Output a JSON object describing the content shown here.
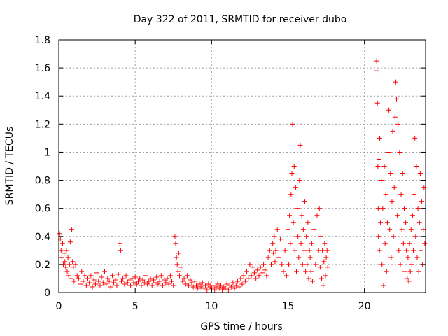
{
  "chart_data": {
    "type": "scatter",
    "title": "Day 322 of 2011, SRMTID for receiver dubo",
    "xlabel": "GPS time / hours",
    "ylabel": "SRMTID / TECUs",
    "xlim": [
      0,
      24
    ],
    "ylim": [
      0,
      1.8
    ],
    "xticks": [
      0,
      5,
      10,
      15,
      20
    ],
    "yticks": [
      0,
      0.2,
      0.4,
      0.6,
      0.8,
      1,
      1.2,
      1.4,
      1.6,
      1.8
    ],
    "xtick_labels": [
      "0",
      "5",
      "10",
      "15",
      "20"
    ],
    "ytick_labels": [
      "0",
      "0.2",
      "0.4",
      "0.6",
      "0.8",
      "1",
      "1.2",
      "1.4",
      "1.6",
      "1.8"
    ],
    "grid": true,
    "marker": "+",
    "color": "#ff0000",
    "series": [
      {
        "name": "SRMTID",
        "points": [
          [
            0.05,
            0.42
          ],
          [
            0.1,
            0.38
          ],
          [
            0.15,
            0.3
          ],
          [
            0.2,
            0.25
          ],
          [
            0.25,
            0.35
          ],
          [
            0.3,
            0.2
          ],
          [
            0.35,
            0.28
          ],
          [
            0.4,
            0.22
          ],
          [
            0.45,
            0.18
          ],
          [
            0.5,
            0.3
          ],
          [
            0.55,
            0.15
          ],
          [
            0.6,
            0.25
          ],
          [
            0.65,
            0.12
          ],
          [
            0.7,
            0.2
          ],
          [
            0.75,
            0.36
          ],
          [
            0.8,
            0.1
          ],
          [
            0.85,
            0.45
          ],
          [
            0.9,
            0.22
          ],
          [
            0.95,
            0.18
          ],
          [
            1.0,
            0.08
          ],
          [
            1.1,
            0.2
          ],
          [
            1.2,
            0.12
          ],
          [
            1.3,
            0.1
          ],
          [
            1.4,
            0.06
          ],
          [
            1.5,
            0.15
          ],
          [
            1.6,
            0.08
          ],
          [
            1.7,
            0.12
          ],
          [
            1.8,
            0.05
          ],
          [
            1.9,
            0.1
          ],
          [
            2.0,
            0.07
          ],
          [
            2.1,
            0.12
          ],
          [
            2.2,
            0.04
          ],
          [
            2.3,
            0.09
          ],
          [
            2.4,
            0.06
          ],
          [
            2.5,
            0.14
          ],
          [
            2.6,
            0.08
          ],
          [
            2.7,
            0.05
          ],
          [
            2.8,
            0.11
          ],
          [
            2.9,
            0.07
          ],
          [
            3.0,
            0.15
          ],
          [
            3.1,
            0.06
          ],
          [
            3.2,
            0.1
          ],
          [
            3.3,
            0.08
          ],
          [
            3.4,
            0.04
          ],
          [
            3.5,
            0.12
          ],
          [
            3.6,
            0.07
          ],
          [
            3.7,
            0.09
          ],
          [
            3.8,
            0.05
          ],
          [
            3.9,
            0.13
          ],
          [
            4.0,
            0.35
          ],
          [
            4.05,
            0.3
          ],
          [
            4.1,
            0.08
          ],
          [
            4.2,
            0.1
          ],
          [
            4.3,
            0.06
          ],
          [
            4.4,
            0.12
          ],
          [
            4.5,
            0.07
          ],
          [
            4.6,
            0.09
          ],
          [
            4.7,
            0.05
          ],
          [
            4.8,
            0.1
          ],
          [
            4.9,
            0.07
          ],
          [
            5.0,
            0.11
          ],
          [
            5.1,
            0.06
          ],
          [
            5.2,
            0.08
          ],
          [
            5.3,
            0.1
          ],
          [
            5.4,
            0.05
          ],
          [
            5.5,
            0.09
          ],
          [
            5.6,
            0.07
          ],
          [
            5.7,
            0.12
          ],
          [
            5.8,
            0.06
          ],
          [
            5.9,
            0.08
          ],
          [
            6.0,
            0.1
          ],
          [
            6.1,
            0.05
          ],
          [
            6.2,
            0.09
          ],
          [
            6.3,
            0.07
          ],
          [
            6.4,
            0.11
          ],
          [
            6.5,
            0.06
          ],
          [
            6.6,
            0.08
          ],
          [
            6.7,
            0.12
          ],
          [
            6.8,
            0.05
          ],
          [
            6.9,
            0.09
          ],
          [
            7.0,
            0.07
          ],
          [
            7.1,
            0.1
          ],
          [
            7.2,
            0.06
          ],
          [
            7.3,
            0.12
          ],
          [
            7.4,
            0.08
          ],
          [
            7.5,
            0.05
          ],
          [
            7.6,
            0.4
          ],
          [
            7.65,
            0.35
          ],
          [
            7.7,
            0.25
          ],
          [
            7.75,
            0.2
          ],
          [
            7.8,
            0.15
          ],
          [
            7.85,
            0.28
          ],
          [
            7.9,
            0.12
          ],
          [
            8.0,
            0.18
          ],
          [
            8.1,
            0.08
          ],
          [
            8.2,
            0.1
          ],
          [
            8.3,
            0.06
          ],
          [
            8.4,
            0.12
          ],
          [
            8.5,
            0.05
          ],
          [
            8.6,
            0.09
          ],
          [
            8.7,
            0.07
          ],
          [
            8.8,
            0.04
          ],
          [
            8.9,
            0.08
          ],
          [
            9.0,
            0.05
          ],
          [
            9.1,
            0.03
          ],
          [
            9.2,
            0.06
          ],
          [
            9.3,
            0.04
          ],
          [
            9.4,
            0.07
          ],
          [
            9.5,
            0.03
          ],
          [
            9.6,
            0.05
          ],
          [
            9.7,
            0.02
          ],
          [
            9.8,
            0.06
          ],
          [
            9.9,
            0.04
          ],
          [
            10.0,
            0.03
          ],
          [
            10.1,
            0.05
          ],
          [
            10.2,
            0.02
          ],
          [
            10.3,
            0.04
          ],
          [
            10.4,
            0.06
          ],
          [
            10.5,
            0.03
          ],
          [
            10.6,
            0.05
          ],
          [
            10.7,
            0.02
          ],
          [
            10.8,
            0.04
          ],
          [
            10.9,
            0.03
          ],
          [
            11.0,
            0.06
          ],
          [
            11.1,
            0.02
          ],
          [
            11.2,
            0.05
          ],
          [
            11.3,
            0.04
          ],
          [
            11.4,
            0.07
          ],
          [
            11.5,
            0.03
          ],
          [
            11.6,
            0.05
          ],
          [
            11.7,
            0.08
          ],
          [
            11.8,
            0.04
          ],
          [
            11.9,
            0.1
          ],
          [
            12.0,
            0.06
          ],
          [
            12.1,
            0.12
          ],
          [
            12.2,
            0.08
          ],
          [
            12.3,
            0.15
          ],
          [
            12.4,
            0.1
          ],
          [
            12.5,
            0.2
          ],
          [
            12.6,
            0.12
          ],
          [
            12.7,
            0.18
          ],
          [
            12.8,
            0.14
          ],
          [
            12.9,
            0.1
          ],
          [
            13.0,
            0.16
          ],
          [
            13.1,
            0.12
          ],
          [
            13.2,
            0.18
          ],
          [
            13.3,
            0.14
          ],
          [
            13.4,
            0.2
          ],
          [
            13.5,
            0.16
          ],
          [
            13.6,
            0.12
          ],
          [
            13.7,
            0.25
          ],
          [
            13.8,
            0.3
          ],
          [
            13.9,
            0.2
          ],
          [
            14.0,
            0.35
          ],
          [
            14.05,
            0.28
          ],
          [
            14.1,
            0.4
          ],
          [
            14.15,
            0.22
          ],
          [
            14.2,
            0.3
          ],
          [
            14.3,
            0.45
          ],
          [
            14.4,
            0.25
          ],
          [
            14.5,
            0.38
          ],
          [
            14.6,
            0.2
          ],
          [
            14.7,
            0.15
          ],
          [
            14.8,
            0.3
          ],
          [
            14.9,
            0.12
          ],
          [
            15.0,
            0.45
          ],
          [
            15.05,
            0.2
          ],
          [
            15.1,
            0.55
          ],
          [
            15.15,
            0.35
          ],
          [
            15.2,
            0.7
          ],
          [
            15.25,
            0.85
          ],
          [
            15.3,
            1.2
          ],
          [
            15.35,
            0.5
          ],
          [
            15.4,
            0.9
          ],
          [
            15.45,
            0.3
          ],
          [
            15.5,
            0.75
          ],
          [
            15.55,
            0.15
          ],
          [
            15.6,
            0.6
          ],
          [
            15.65,
            0.4
          ],
          [
            15.7,
            0.25
          ],
          [
            15.75,
            0.8
          ],
          [
            15.8,
            1.05
          ],
          [
            15.85,
            0.35
          ],
          [
            15.9,
            0.55
          ],
          [
            15.95,
            0.2
          ],
          [
            16.0,
            0.45
          ],
          [
            16.05,
            0.3
          ],
          [
            16.1,
            0.65
          ],
          [
            16.15,
            0.15
          ],
          [
            16.2,
            0.4
          ],
          [
            16.25,
            0.2
          ],
          [
            16.3,
            0.5
          ],
          [
            16.35,
            0.1
          ],
          [
            16.4,
            0.3
          ],
          [
            16.45,
            0.25
          ],
          [
            16.5,
            0.15
          ],
          [
            16.55,
            0.35
          ],
          [
            16.6,
            0.08
          ],
          [
            16.7,
            0.45
          ],
          [
            16.8,
            0.2
          ],
          [
            16.9,
            0.55
          ],
          [
            17.0,
            0.3
          ],
          [
            17.05,
            0.6
          ],
          [
            17.1,
            0.18
          ],
          [
            17.15,
            0.4
          ],
          [
            17.2,
            0.1
          ],
          [
            17.25,
            0.3
          ],
          [
            17.3,
            0.05
          ],
          [
            17.35,
            0.22
          ],
          [
            17.4,
            0.35
          ],
          [
            17.45,
            0.12
          ],
          [
            17.5,
            0.25
          ],
          [
            17.55,
            0.3
          ],
          [
            17.6,
            0.18
          ],
          [
            20.8,
            1.65
          ],
          [
            20.82,
            1.58
          ],
          [
            20.85,
            1.35
          ],
          [
            20.88,
            0.9
          ],
          [
            20.9,
            0.6
          ],
          [
            20.92,
            0.4
          ],
          [
            20.95,
            0.95
          ],
          [
            20.98,
            0.3
          ],
          [
            21.0,
            1.1
          ],
          [
            21.05,
            0.5
          ],
          [
            21.1,
            0.8
          ],
          [
            21.15,
            0.2
          ],
          [
            21.2,
            0.6
          ],
          [
            21.25,
            0.05
          ],
          [
            21.3,
            0.9
          ],
          [
            21.35,
            0.35
          ],
          [
            21.4,
            0.7
          ],
          [
            21.45,
            0.15
          ],
          [
            21.5,
            0.5
          ],
          [
            21.55,
            1.0
          ],
          [
            21.6,
            1.3
          ],
          [
            21.65,
            0.45
          ],
          [
            21.7,
            0.85
          ],
          [
            21.75,
            0.25
          ],
          [
            21.8,
            0.65
          ],
          [
            21.85,
            1.15
          ],
          [
            21.9,
            0.4
          ],
          [
            21.95,
            0.75
          ],
          [
            22.0,
            1.25
          ],
          [
            22.05,
            1.5
          ],
          [
            22.1,
            1.38
          ],
          [
            22.15,
            0.55
          ],
          [
            22.2,
            1.2
          ],
          [
            22.25,
            0.3
          ],
          [
            22.3,
            1.0
          ],
          [
            22.35,
            0.2
          ],
          [
            22.4,
            0.7
          ],
          [
            22.45,
            0.45
          ],
          [
            22.5,
            0.85
          ],
          [
            22.55,
            0.35
          ],
          [
            22.6,
            0.6
          ],
          [
            22.65,
            0.15
          ],
          [
            22.7,
            0.5
          ],
          [
            22.75,
            0.3
          ],
          [
            22.8,
            0.1
          ],
          [
            22.85,
            0.25
          ],
          [
            22.9,
            0.08
          ],
          [
            22.95,
            0.35
          ],
          [
            23.0,
            0.15
          ],
          [
            23.05,
            0.45
          ],
          [
            23.1,
            0.2
          ],
          [
            23.15,
            0.55
          ],
          [
            23.2,
            0.3
          ],
          [
            23.25,
            0.7
          ],
          [
            23.3,
            1.1
          ],
          [
            23.35,
            0.4
          ],
          [
            23.4,
            0.9
          ],
          [
            23.45,
            0.25
          ],
          [
            23.5,
            0.6
          ],
          [
            23.55,
            0.15
          ],
          [
            23.6,
            0.5
          ],
          [
            23.65,
            0.85
          ],
          [
            23.7,
            0.3
          ],
          [
            23.75,
            0.65
          ],
          [
            23.8,
            0.2
          ],
          [
            23.85,
            0.45
          ],
          [
            23.9,
            0.75
          ],
          [
            23.95,
            0.35
          ]
        ]
      }
    ]
  }
}
